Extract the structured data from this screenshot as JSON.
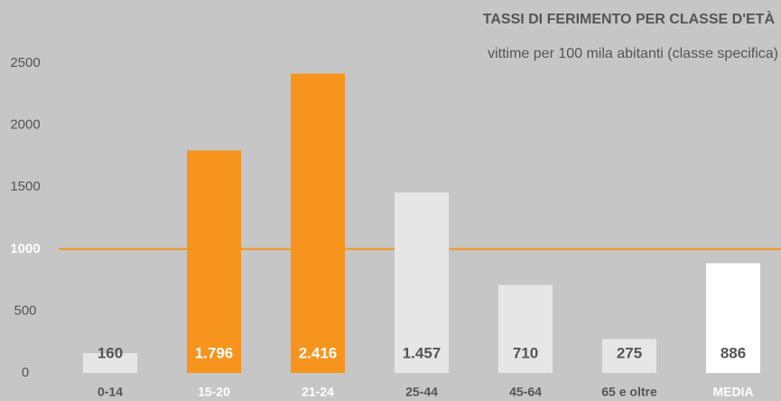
{
  "chart_data": {
    "type": "bar",
    "title": "TASSI DI FERIMENTO PER CLASSE D'ETÀ",
    "subtitle": "vittime per 100 mila abitanti (classe specifica)",
    "categories": [
      "0-14",
      "15-20",
      "21-24",
      "25-44",
      "45-64",
      "65 e oltre",
      "MEDIA"
    ],
    "values": [
      160,
      1796,
      2416,
      1457,
      710,
      275,
      886
    ],
    "value_labels": [
      "160",
      "1.796",
      "2.416",
      "1.457",
      "710",
      "275",
      "886"
    ],
    "colors": [
      "#e6e6e6",
      "#f7941d",
      "#f7941d",
      "#e6e6e6",
      "#e6e6e6",
      "#e6e6e6",
      "#ffffff"
    ],
    "ylim": [
      0,
      2500
    ],
    "yticks": [
      0,
      500,
      1000,
      1500,
      2000,
      2500
    ],
    "reference_line": {
      "value": 1000,
      "color": "#f7941d"
    }
  }
}
